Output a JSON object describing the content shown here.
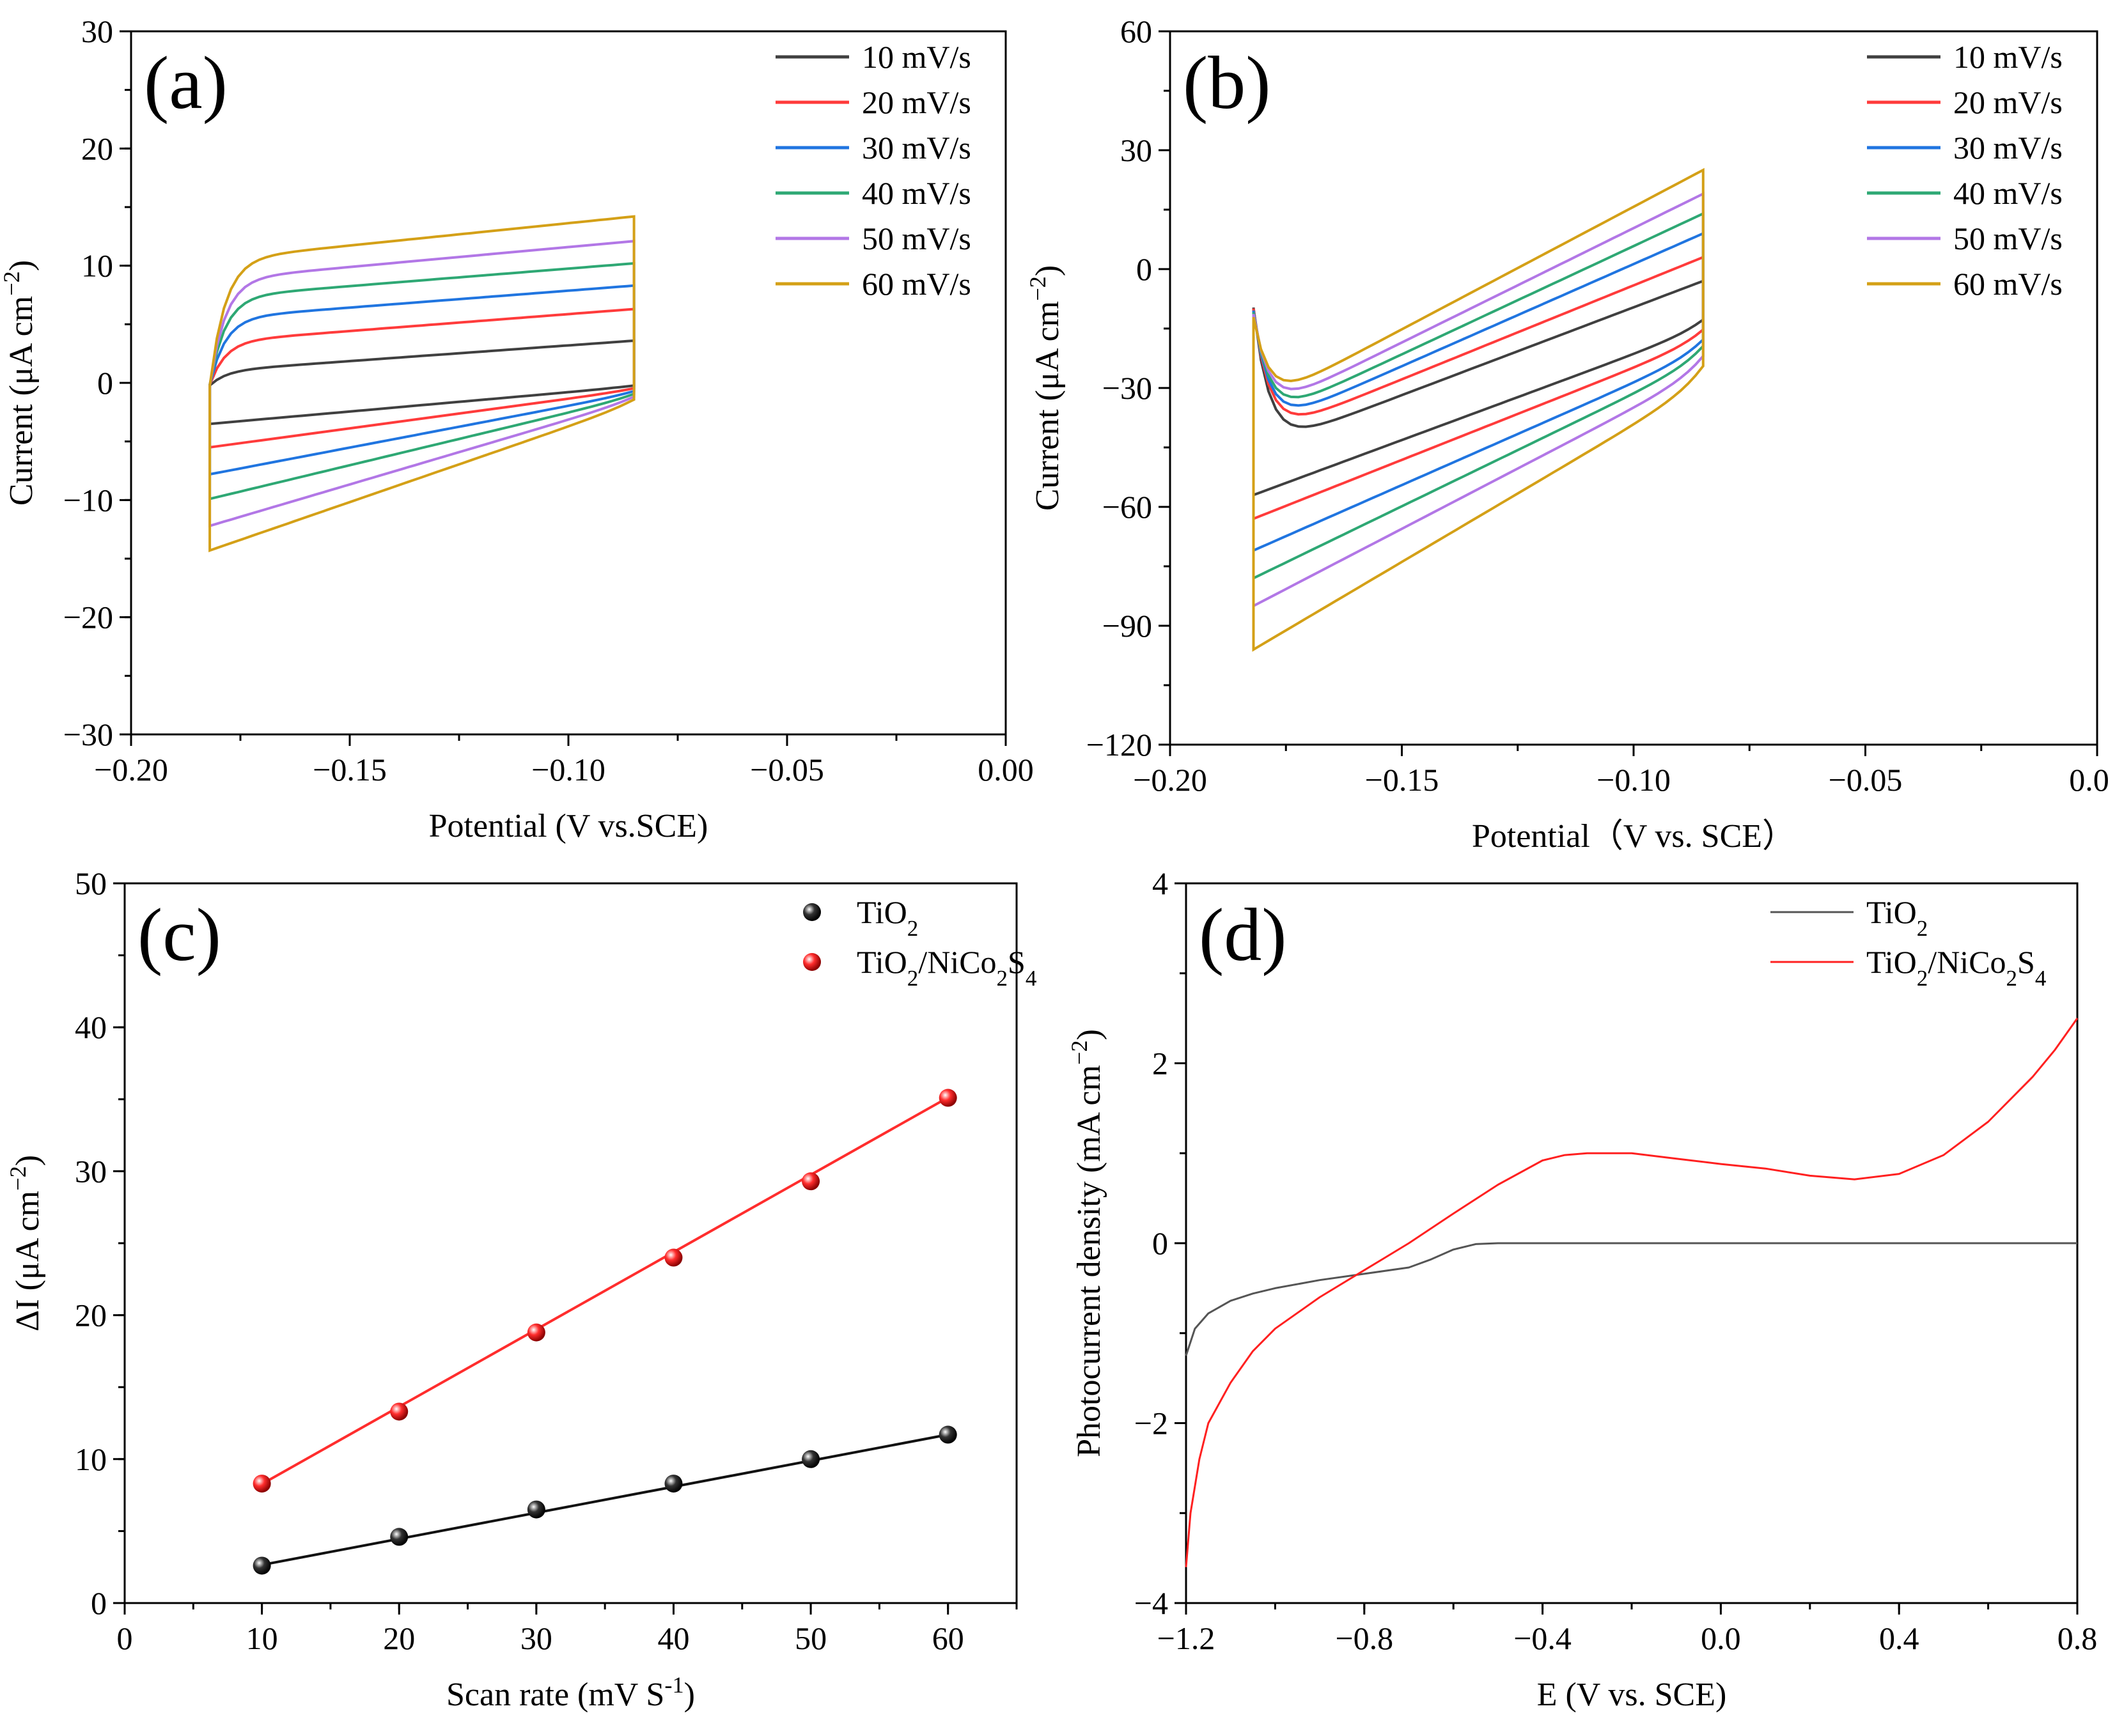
{
  "charts": [
    {
      "id": "a",
      "panel_label": "(a)",
      "xlabel_parts": [
        "Potential (V vs.SCE)"
      ],
      "ylabel_parts": [
        "Current (",
        "μ",
        "A cm",
        "−2",
        ")"
      ],
      "x_ticks": [
        "−0.20",
        "−0.15",
        "−0.10",
        "−0.05",
        "0.00"
      ],
      "y_ticks": [
        "−30",
        "−20",
        "−10",
        "0",
        "10",
        "20",
        "30"
      ],
      "legend": [
        "10 mV/s",
        "20 mV/s",
        "30 mV/s",
        "40 mV/s",
        "50 mV/s",
        "60 mV/s"
      ]
    },
    {
      "id": "b",
      "panel_label": "(b)",
      "xlabel_parts": [
        "Potential（V vs. SCE）"
      ],
      "ylabel_parts": [
        "Current (",
        "μ",
        "A cm",
        "−2",
        ")"
      ],
      "x_ticks": [
        "−0.20",
        "−0.15",
        "−0.10",
        "−0.05",
        "0.00"
      ],
      "y_ticks": [
        "−120",
        "−90",
        "−60",
        "−30",
        "0",
        "30",
        "60"
      ],
      "legend": [
        "10 mV/s",
        "20 mV/s",
        "30 mV/s",
        "40 mV/s",
        "50 mV/s",
        "60 mV/s"
      ]
    },
    {
      "id": "c",
      "panel_label": "(c)",
      "xlabel_parts": [
        "Scan rate (mV S",
        "-1",
        ")"
      ],
      "ylabel_parts": [
        "ΔI (",
        "μ",
        "A cm",
        "−2",
        ")"
      ],
      "x_ticks": [
        "0",
        "10",
        "20",
        "30",
        "40",
        "50",
        "60"
      ],
      "y_ticks": [
        "0",
        "10",
        "20",
        "30",
        "40",
        "50"
      ],
      "legend": [
        [
          "TiO",
          "2",
          ""
        ],
        [
          "TiO",
          "2",
          "/NiCo",
          "2",
          "S",
          "4"
        ]
      ]
    },
    {
      "id": "d",
      "panel_label": "(d)",
      "xlabel_parts": [
        "E (V vs. SCE)"
      ],
      "ylabel_parts": [
        "Photocurrent density (mA cm",
        "−2",
        ")"
      ],
      "x_ticks": [
        "−1.2",
        "−0.8",
        "−0.4",
        "0.0",
        "0.4",
        "0.8"
      ],
      "y_ticks": [
        "−4",
        "−2",
        "0",
        "2",
        "4"
      ],
      "legend": [
        [
          "TiO",
          "2",
          ""
        ],
        [
          "TiO",
          "2",
          "/NiCo",
          "2",
          "S",
          "4"
        ]
      ]
    }
  ],
  "chart_data": [
    {
      "type": "line",
      "title": "(a)",
      "xlabel": "Potential (V vs.SCE)",
      "ylabel": "Current (μA cm−2)",
      "xlim": [
        -0.2,
        0.0
      ],
      "ylim": [
        -30,
        30
      ],
      "potential_window": [
        -0.182,
        -0.085
      ],
      "series": [
        {
          "name": "10 mV/s",
          "color": "#404040",
          "upper_start": 1.0,
          "upper_end": 3.6,
          "lower_start": -3.5,
          "lower_end": -0.3
        },
        {
          "name": "20 mV/s",
          "color": "#ff3b3b",
          "upper_start": 3.5,
          "upper_end": 6.3,
          "lower_start": -5.5,
          "lower_end": -0.6
        },
        {
          "name": "30 mV/s",
          "color": "#2075e0",
          "upper_start": 5.5,
          "upper_end": 8.3,
          "lower_start": -7.8,
          "lower_end": -0.9
        },
        {
          "name": "40 mV/s",
          "color": "#2ea874",
          "upper_start": 7.3,
          "upper_end": 10.2,
          "lower_start": -9.9,
          "lower_end": -1.2
        },
        {
          "name": "50 mV/s",
          "color": "#b277e6",
          "upper_start": 8.8,
          "upper_end": 12.1,
          "lower_start": -12.2,
          "lower_end": -1.5
        },
        {
          "name": "60 mV/s",
          "color": "#d4a017",
          "upper_start": 10.5,
          "upper_end": 14.2,
          "lower_start": -14.3,
          "lower_end": -1.8
        }
      ]
    },
    {
      "type": "line",
      "title": "(b)",
      "xlabel": "Potential（V vs. SCE）",
      "ylabel": "Current (μA cm−2)",
      "xlim": [
        -0.2,
        0.0
      ],
      "ylim": [
        -120,
        60
      ],
      "potential_window": [
        -0.182,
        -0.085
      ],
      "series": [
        {
          "name": "10 mV/s",
          "color": "#404040",
          "upper_start": -46,
          "upper_end": -3,
          "lower_start": -57,
          "lower_end": -15
        },
        {
          "name": "20 mV/s",
          "color": "#ff3b3b",
          "upper_start": -43,
          "upper_end": 3,
          "lower_start": -63,
          "lower_end": -18
        },
        {
          "name": "30 mV/s",
          "color": "#2075e0",
          "upper_start": -41,
          "upper_end": 9,
          "lower_start": -71,
          "lower_end": -21
        },
        {
          "name": "40 mV/s",
          "color": "#2ea874",
          "upper_start": -39,
          "upper_end": 14,
          "lower_start": -78,
          "lower_end": -23
        },
        {
          "name": "50 mV/s",
          "color": "#b277e6",
          "upper_start": -37,
          "upper_end": 19,
          "lower_start": -85,
          "lower_end": -26
        },
        {
          "name": "60 mV/s",
          "color": "#d4a017",
          "upper_start": -35,
          "upper_end": 25,
          "lower_start": -96,
          "lower_end": -29
        }
      ]
    },
    {
      "type": "scatter",
      "title": "(c)",
      "xlabel": "Scan rate (mV S-1)",
      "ylabel": "ΔI (μA cm−2)",
      "xlim": [
        0,
        65
      ],
      "ylim": [
        0,
        50
      ],
      "x": [
        10,
        20,
        30,
        40,
        50,
        60
      ],
      "series": [
        {
          "name": "TiO2",
          "color": "#333333",
          "values": [
            2.6,
            4.6,
            6.5,
            8.3,
            10.0,
            11.7
          ],
          "fit": [
            0.84,
            0.181
          ]
        },
        {
          "name": "TiO2/NiCo2S4",
          "color": "#ff2d2d",
          "values": [
            8.3,
            13.3,
            18.8,
            24.0,
            29.3,
            35.1
          ],
          "fit": [
            2.9,
            0.537
          ]
        }
      ]
    },
    {
      "type": "line",
      "title": "(d)",
      "xlabel": "E (V vs. SCE)",
      "ylabel": "Photocurrent density (mA cm−2)",
      "xlim": [
        -1.2,
        0.8
      ],
      "ylim": [
        -4,
        4
      ],
      "series": [
        {
          "name": "TiO2",
          "color": "#555555",
          "x": [
            -1.2,
            -1.18,
            -1.15,
            -1.1,
            -1.05,
            -1.0,
            -0.9,
            -0.8,
            -0.7,
            -0.65,
            -0.6,
            -0.55,
            -0.5,
            -0.3,
            0.0,
            0.4,
            0.8
          ],
          "y": [
            -1.25,
            -0.95,
            -0.78,
            -0.64,
            -0.56,
            -0.5,
            -0.41,
            -0.34,
            -0.27,
            -0.18,
            -0.07,
            -0.01,
            0.0,
            0.0,
            0.0,
            0.0,
            0.0
          ]
        },
        {
          "name": "TiO2/NiCo2S4",
          "color": "#ff2020",
          "x": [
            -1.2,
            -1.19,
            -1.17,
            -1.15,
            -1.1,
            -1.05,
            -1.0,
            -0.9,
            -0.8,
            -0.7,
            -0.6,
            -0.5,
            -0.4,
            -0.35,
            -0.3,
            -0.2,
            -0.1,
            0.0,
            0.1,
            0.2,
            0.3,
            0.4,
            0.5,
            0.6,
            0.7,
            0.75,
            0.8
          ],
          "y": [
            -3.6,
            -3.0,
            -2.4,
            -2.0,
            -1.55,
            -1.2,
            -0.95,
            -0.6,
            -0.3,
            0.0,
            0.33,
            0.65,
            0.92,
            0.98,
            1.0,
            1.0,
            0.94,
            0.88,
            0.83,
            0.75,
            0.71,
            0.77,
            0.98,
            1.35,
            1.85,
            2.15,
            2.5
          ]
        }
      ]
    }
  ]
}
